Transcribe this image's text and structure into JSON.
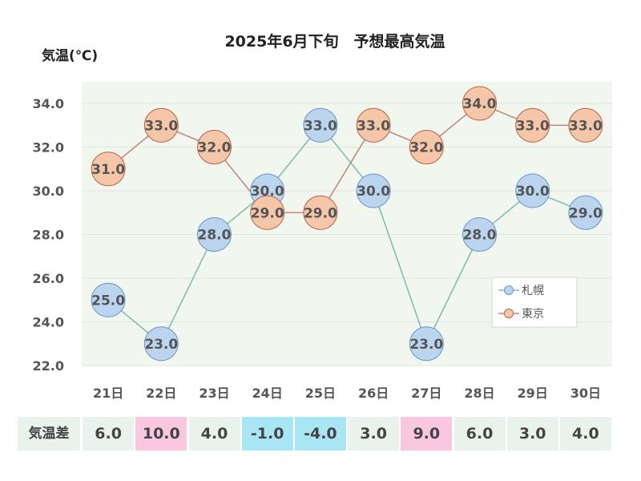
{
  "chart_data": {
    "type": "line",
    "title": "2025年6月下旬　予想最高気温",
    "ylabel": "気温(℃)",
    "ylim": [
      22.0,
      35.0
    ],
    "yticks": [
      "22.0",
      "24.0",
      "26.0",
      "28.0",
      "30.0",
      "32.0",
      "34.0"
    ],
    "categories": [
      "21日",
      "22日",
      "23日",
      "24日",
      "25日",
      "26日",
      "27日",
      "28日",
      "29日",
      "30日"
    ],
    "series": [
      {
        "name": "札幌",
        "values": [
          25.0,
          23.0,
          28.0,
          30.0,
          33.0,
          30.0,
          23.0,
          28.0,
          30.0,
          29.0
        ],
        "labels": [
          "25.0",
          "23.0",
          "28.0",
          "30.0",
          "33.0",
          "30.0",
          "23.0",
          "28.0",
          "30.0",
          "29.0"
        ],
        "fill_color": "#bcd5ee",
        "stroke_color": "#6a94c6",
        "line_color": "#7fbfb4"
      },
      {
        "name": "東京",
        "values": [
          31.0,
          33.0,
          32.0,
          29.0,
          29.0,
          33.0,
          32.0,
          34.0,
          33.0,
          33.0
        ],
        "labels": [
          "31.0",
          "33.0",
          "32.0",
          "29.0",
          "29.0",
          "33.0",
          "32.0",
          "34.0",
          "33.0",
          "33.0"
        ],
        "fill_color": "#f6c6a8",
        "stroke_color": "#b9614a",
        "line_color": "#bf8a80"
      }
    ],
    "grid": true,
    "legend_position": "bottom-right",
    "plot_background": "#f1f7ee"
  },
  "diff_row": {
    "label": "気温差",
    "values": [
      "6.0",
      "10.0",
      "4.0",
      "-1.0",
      "-4.0",
      "3.0",
      "9.0",
      "6.0",
      "3.0",
      "4.0"
    ],
    "colors": [
      "#eaf2ee",
      "#f9c8de",
      "#eaf2ee",
      "#a8e6f4",
      "#a8e6f4",
      "#eaf2ee",
      "#f9c8de",
      "#eaf2ee",
      "#eaf2ee",
      "#eaf2ee"
    ]
  }
}
